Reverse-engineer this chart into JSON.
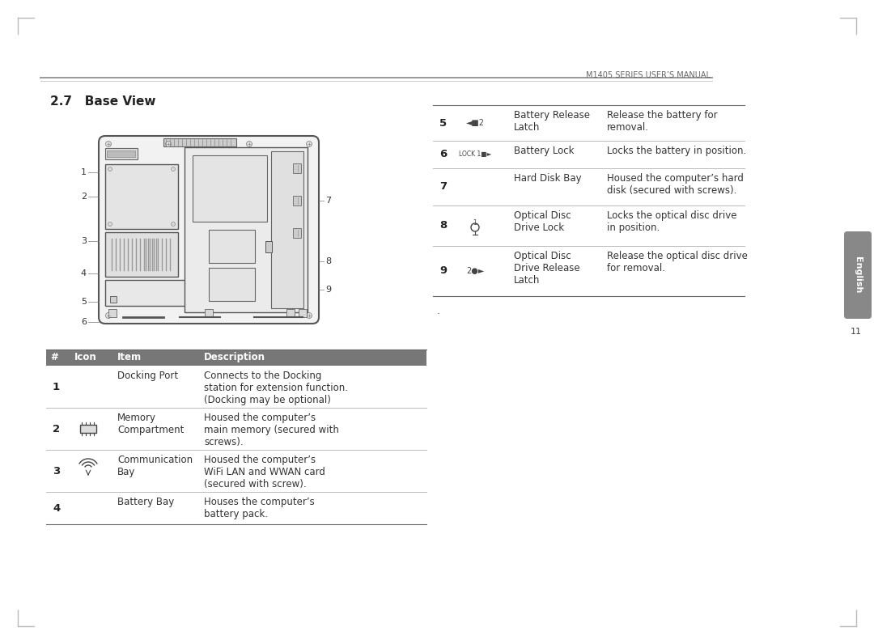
{
  "page_title": "M1405 SERIES USER’S MANUAL",
  "section_title": "2.7   Base View",
  "bg_color": "#ffffff",
  "table_header_bg": "#777777",
  "text_color": "#333333",
  "side_tab_color": "#888888",
  "side_tab_text": "English",
  "page_number": "11",
  "bottom_dot": ".",
  "table1_header": [
    "#",
    "Icon",
    "Item",
    "Description"
  ],
  "table1_rows": [
    {
      "num": "1",
      "icon": "",
      "item": "Docking Port",
      "desc": "Connects to the Docking\nstation for extension function.\n(Docking may be optional)"
    },
    {
      "num": "2",
      "icon": "memory",
      "item": "Memory\nCompartment",
      "desc": "Housed the computer’s\nmain memory (secured with\nscrews)."
    },
    {
      "num": "3",
      "icon": "wifi",
      "item": "Communication\nBay",
      "desc": "Housed the computer’s\nWiFi LAN and WWAN card\n(secured with screw)."
    },
    {
      "num": "4",
      "icon": "",
      "item": "Battery Bay",
      "desc": "Houses the computer’s\nbattery pack."
    }
  ],
  "table2_rows": [
    {
      "num": "5",
      "icon": "bat_release",
      "item": "Battery Release\nLatch",
      "desc": "Release the battery for\nremoval."
    },
    {
      "num": "6",
      "icon": "bat_lock",
      "item": "Battery Lock",
      "desc": "Locks the battery in position."
    },
    {
      "num": "7",
      "icon": "",
      "item": "Hard Disk Bay",
      "desc": "Housed the computer’s hard\ndisk (secured with screws)."
    },
    {
      "num": "8",
      "icon": "od_lock",
      "item": "Optical Disc\nDrive Lock",
      "desc": "Locks the optical disc drive\nin position."
    },
    {
      "num": "9",
      "icon": "od_release",
      "item": "Optical Disc\nDrive Release\nLatch",
      "desc": "Release the optical disc drive\nfor removal."
    }
  ]
}
